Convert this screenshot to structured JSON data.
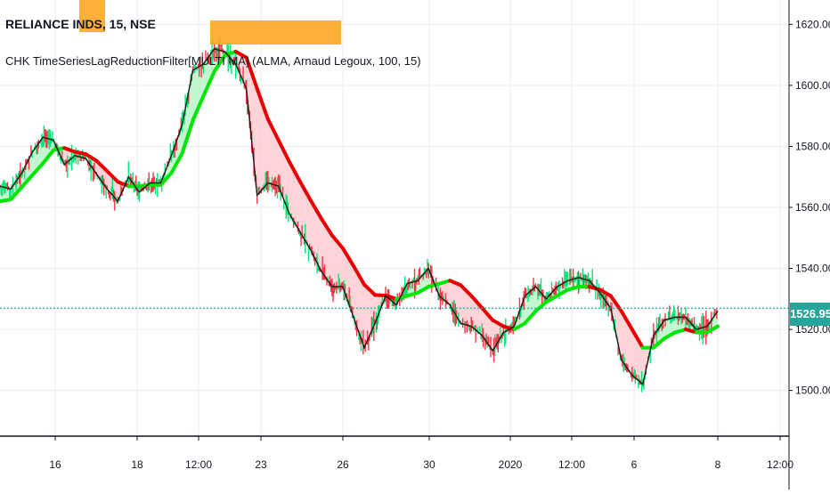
{
  "symbol_title": "RELIANCE INDS, 15, NSE",
  "indicator_label": "CHK TimeSeriesLagReductionFilter[MULTI MA] (ALMA, Arnaud Legoux, 100, 15)",
  "last_price": "1526.95",
  "colors": {
    "up_fill": "#00e676",
    "down_fill": "#f23645",
    "ma_up": "#00e600",
    "ma_down": "#e60000",
    "band_up": "#b9f6ca",
    "band_down": "#ffcdd2",
    "price_tag": "#26a69a",
    "grid": "#e9ecf2"
  },
  "chart_data": {
    "type": "line",
    "ylim": [
      1485,
      1628
    ],
    "y_ticks": [
      "1500.00",
      "1520.00",
      "1540.00",
      "1560.00",
      "1580.00",
      "1600.00",
      "1620.00"
    ],
    "x_ticks": [
      "16",
      "18",
      "12:00",
      "23",
      "26",
      "30",
      "2020",
      "12:00",
      "6",
      "8",
      "12:00"
    ],
    "last_price": 1526.95,
    "series": [
      {
        "values": [
          1567,
          1566,
          1571,
          1578,
          1583,
          1582,
          1574,
          1577,
          1576,
          1571,
          1566,
          1562,
          1570,
          1565,
          1568,
          1568,
          1577,
          1587,
          1605,
          1607,
          1612,
          1611,
          1607,
          1599,
          1564,
          1568,
          1567,
          1558,
          1552,
          1546,
          1539,
          1534,
          1534,
          1524,
          1514,
          1522,
          1531,
          1528,
          1535,
          1536,
          1540,
          1531,
          1528,
          1522,
          1521,
          1518,
          1513,
          1519,
          1521,
          1531,
          1534,
          1530,
          1534,
          1536,
          1537,
          1536,
          1532,
          1527,
          1510,
          1505,
          1502,
          1518,
          1523,
          1524,
          1524,
          1520,
          1521,
          1526
        ]
      },
      {
        "values": [
          1562,
          1562.6,
          1566.5,
          1570.5,
          1574.4,
          1578.8,
          1579.5,
          1578.2,
          1577.5,
          1575.3,
          1571.9,
          1568.4,
          1567,
          1567,
          1567.4,
          1567.4,
          1571.3,
          1577.7,
          1588.5,
          1596.6,
          1604.5,
          1609.9,
          1611.1,
          1609.1,
          1598.9,
          1589,
          1582,
          1575,
          1568.5,
          1562.3,
          1556.3,
          1550.8,
          1546.6,
          1540.8,
          1534.7,
          1531.3,
          1531.1,
          1530,
          1531,
          1532,
          1534,
          1535,
          1536,
          1534.5,
          1531,
          1527,
          1523,
          1521,
          1520,
          1522,
          1526,
          1529,
          1531,
          1533,
          1534,
          1534,
          1533,
          1531,
          1526,
          1520,
          1514,
          1514,
          1517,
          1519,
          1520,
          1519,
          1519,
          1521
        ]
      }
    ]
  }
}
